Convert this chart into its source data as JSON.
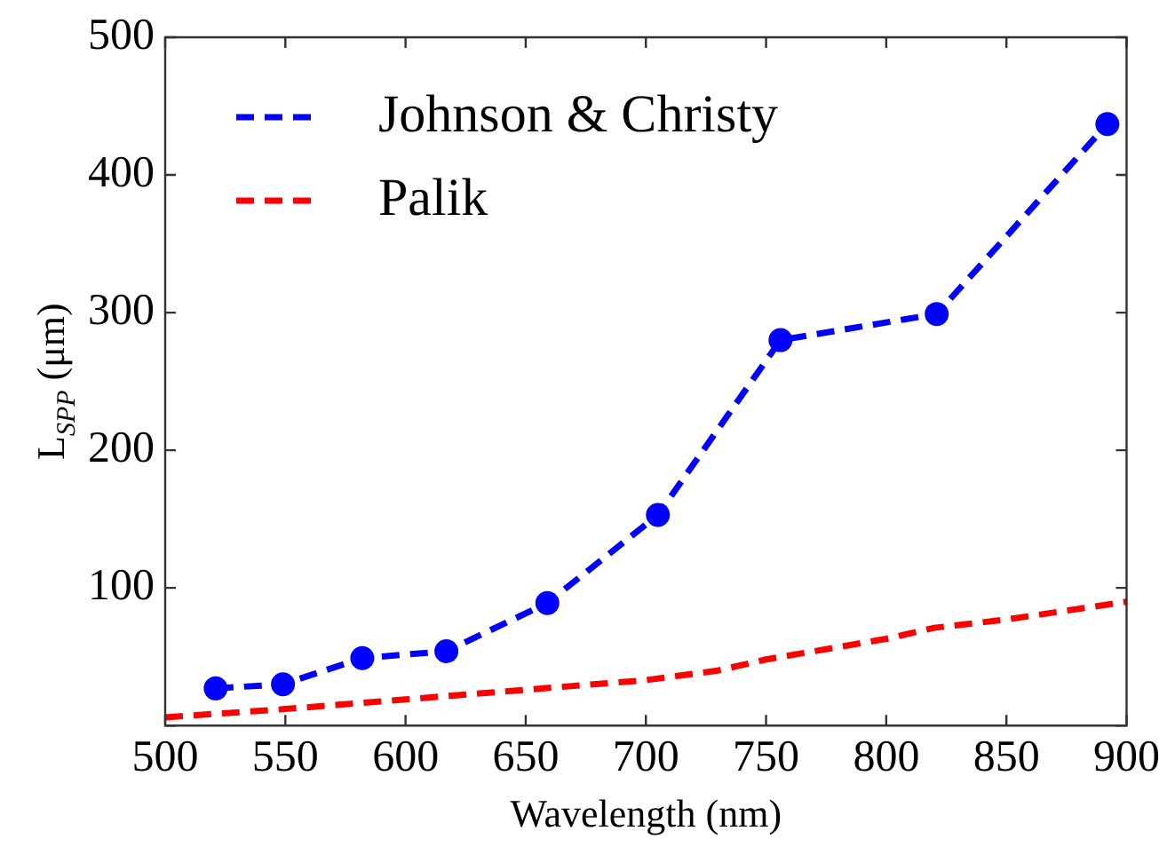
{
  "chart_data": {
    "type": "line",
    "xlabel": "Wavelength (nm)",
    "ylabel": "L$_{SPP}$ (μm)",
    "xlim": [
      500,
      900
    ],
    "xticks": [
      500,
      550,
      600,
      650,
      700,
      750,
      800,
      850,
      900
    ],
    "ylim": [
      0,
      500
    ],
    "yticks": [
      {
        "value": 0,
        "label": null
      },
      100,
      200,
      300,
      400,
      500
    ],
    "grid": false,
    "legend": "top left",
    "line_style": "dashed",
    "series": [
      {
        "name": "Johnson & Christy",
        "color": "#0000ff",
        "marker": "circle",
        "x": [
          521,
          549,
          582,
          617,
          659,
          705,
          756,
          821,
          892
        ],
        "values": [
          27,
          30,
          49,
          54,
          89,
          153,
          280,
          299,
          437
        ]
      },
      {
        "name": "Palik",
        "color": "#ff0000",
        "marker": "none",
        "x": [
          500,
          550,
          600,
          650,
          700,
          730,
          750,
          800,
          820,
          850,
          900
        ],
        "values": [
          6,
          12,
          19,
          26,
          33,
          40,
          48,
          63,
          71,
          77,
          90
        ]
      }
    ]
  }
}
